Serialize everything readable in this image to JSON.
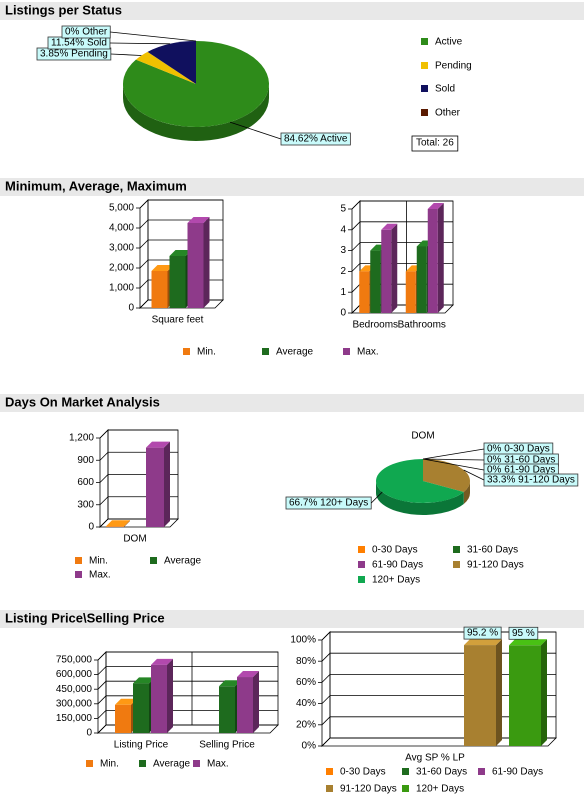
{
  "chart_data": [
    {
      "type": "pie",
      "heading": "Listings per Status",
      "categories": [
        "Active",
        "Pending",
        "Sold",
        "Other"
      ],
      "values": [
        84.62,
        3.85,
        11.54,
        0
      ],
      "value_labels": [
        "84.62%  Active",
        "3.85%  Pending",
        "11.54%  Sold",
        "0%  Other"
      ],
      "colors": [
        "#2e8b1a",
        "#f0c000",
        "#10105e",
        "#5a1a00"
      ],
      "legend": true,
      "annotation": "Total: 26"
    },
    {
      "type": "bar",
      "heading": "Minimum, Average, Maximum",
      "categories": [
        "Square feet"
      ],
      "series": [
        {
          "name": "Min.",
          "color": "#f07a10",
          "values": [
            1850
          ]
        },
        {
          "name": "Average",
          "color": "#1e6b1e",
          "values": [
            2600
          ]
        },
        {
          "name": "Max.",
          "color": "#8e3a8a",
          "values": [
            4250
          ]
        }
      ],
      "ylim": [
        0,
        5000
      ],
      "yticks": [
        0,
        {
          "value": 1000,
          "label": "1,000"
        },
        {
          "value": 2000,
          "label": "2,000"
        },
        {
          "value": 3000,
          "label": "3,000"
        },
        {
          "value": 4000,
          "label": "4,000"
        },
        {
          "value": 5000,
          "label": "5,000"
        }
      ],
      "grid": true,
      "legend": true
    },
    {
      "type": "bar",
      "categories": [
        "Bedrooms",
        "Bathrooms"
      ],
      "series": [
        {
          "name": "Min.",
          "color": "#f07a10",
          "values": [
            2,
            2
          ]
        },
        {
          "name": "Average",
          "color": "#1e6b1e",
          "values": [
            3,
            3.2
          ]
        },
        {
          "name": "Max.",
          "color": "#8e3a8a",
          "values": [
            4,
            5
          ]
        }
      ],
      "ylim": [
        0,
        5
      ],
      "yticks": [
        0,
        1,
        2,
        3,
        4,
        5
      ],
      "grid": true,
      "legend": false
    },
    {
      "type": "bar",
      "heading": "Days On Market Analysis",
      "categories": [
        "DOM"
      ],
      "series": [
        {
          "name": "Min.",
          "color": "#f07a10",
          "values": [
            10
          ]
        },
        {
          "name": "Average",
          "color": "#1e6b1e",
          "values": [
            0
          ]
        },
        {
          "name": "Max.",
          "color": "#8e3a8a",
          "values": [
            1070
          ]
        }
      ],
      "ylim": [
        0,
        1200
      ],
      "yticks": [
        0,
        300,
        600,
        900,
        {
          "value": 1200,
          "label": "1,200"
        }
      ],
      "grid": true,
      "legend": true
    },
    {
      "type": "pie",
      "title": "DOM",
      "categories": [
        "0-30 Days",
        "31-60 Days",
        "61-90 Days",
        "91-120 Days",
        "120+ Days"
      ],
      "values": [
        0,
        0,
        0,
        33.3,
        66.7
      ],
      "value_labels": [
        "0%  0-30 Days",
        "0%  31-60 Days",
        "0%  61-90 Days",
        "33.3%  91-120 Days",
        "66.7%  120+ Days"
      ],
      "colors": [
        "#ff7f00",
        "#1e6b1e",
        "#8e3a8a",
        "#a88030",
        "#10a850"
      ],
      "legend": true
    },
    {
      "type": "bar",
      "heading": "Listing Price\\Selling Price",
      "categories": [
        "Listing Price",
        "Selling Price"
      ],
      "series": [
        {
          "name": "Min.",
          "color": "#f07a10",
          "values": [
            290000,
            0
          ]
        },
        {
          "name": "Average",
          "color": "#1e6b1e",
          "values": [
            510000,
            480000
          ]
        },
        {
          "name": "Max.",
          "color": "#8e3a8a",
          "values": [
            700000,
            575000
          ]
        }
      ],
      "ylim": [
        0,
        750000
      ],
      "yticks": [
        0,
        {
          "value": 150000,
          "label": "150,000"
        },
        {
          "value": 300000,
          "label": "300,000"
        },
        {
          "value": 450000,
          "label": "450,000"
        },
        {
          "value": 600000,
          "label": "600,000"
        },
        {
          "value": 750000,
          "label": "750,000"
        }
      ],
      "grid": true,
      "legend": true
    },
    {
      "type": "bar",
      "categories": [
        "Avg SP % LP"
      ],
      "series": [
        {
          "name": "0-30 Days",
          "color": "#ff7f00",
          "values": [
            0
          ]
        },
        {
          "name": "31-60 Days",
          "color": "#1e6b1e",
          "values": [
            0
          ]
        },
        {
          "name": "61-90 Days",
          "color": "#8e3a8a",
          "values": [
            0
          ]
        },
        {
          "name": "91-120 Days",
          "color": "#a88030",
          "values": [
            95.2
          ],
          "value_labels": [
            "95.2 %"
          ]
        },
        {
          "name": "120+ Days",
          "color": "#3a9a10",
          "values": [
            95
          ],
          "value_labels": [
            "95 %"
          ]
        }
      ],
      "ylim": [
        0,
        100
      ],
      "yticks": [
        {
          "value": 0,
          "label": "0%"
        },
        {
          "value": 20,
          "label": "20%"
        },
        {
          "value": 40,
          "label": "40%"
        },
        {
          "value": 60,
          "label": "60%"
        },
        {
          "value": 80,
          "label": "80%"
        },
        {
          "value": 100,
          "label": "100%"
        }
      ],
      "grid": true,
      "legend": true
    }
  ]
}
